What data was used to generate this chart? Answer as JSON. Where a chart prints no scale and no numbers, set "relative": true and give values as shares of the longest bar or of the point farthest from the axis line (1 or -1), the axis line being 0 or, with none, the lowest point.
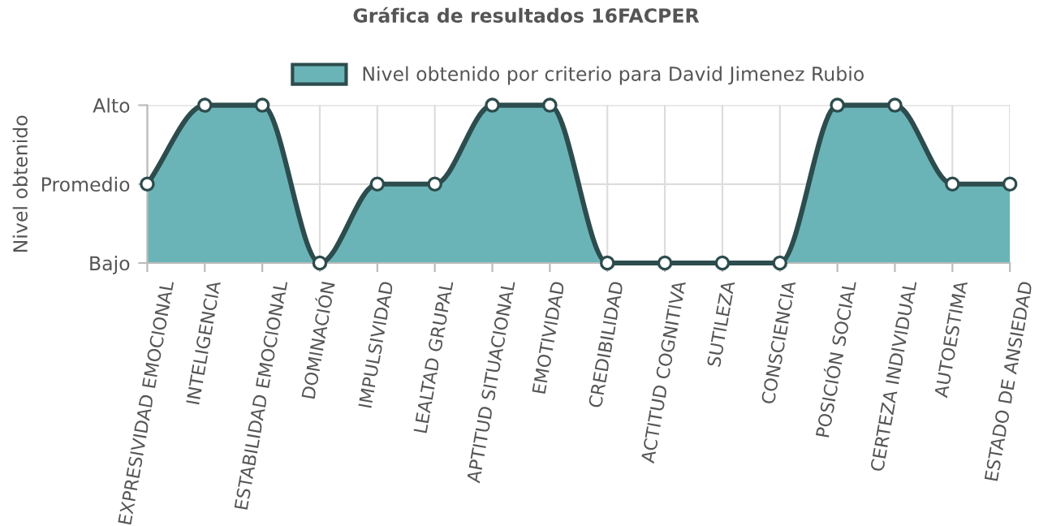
{
  "chart_data": {
    "type": "area",
    "title": "Gráfica de resultados 16FACPER",
    "ylabel": "Nivel obtenido",
    "categories": [
      "EXPRESIVIDAD EMOCIONAL",
      "INTELIGENCIA",
      "ESTABILIDAD EMOCIONAL",
      "DOMINACIÓN",
      "IMPULSIVIDAD",
      "LEALTAD GRUPAL",
      "APTITUD SITUACIONAL",
      "EMOTIVIDAD",
      "CREDIBILIDAD",
      "ACTITUD COGNITIVA",
      "SUTILEZA",
      "CONSCIENCIA",
      "POSICIÓN SOCIAL",
      "CERTEZA INDIVIDUAL",
      "AUTOESTIMA",
      "ESTADO DE ANSIEDAD"
    ],
    "series": [
      {
        "name": "Nivel obtenido por criterio para David Jimenez Rubio",
        "color": "#6ab4b7",
        "values": [
          0.5,
          1,
          1,
          0,
          0.5,
          0.5,
          1,
          1,
          0,
          0,
          0,
          0,
          1,
          1,
          0.5,
          0.5
        ]
      }
    ],
    "relative": true,
    "y_categories": [
      "Alto",
      "Promedio",
      "Bajo"
    ],
    "grid": true,
    "legend": "top",
    "marker": "circle",
    "line_style": "solid"
  }
}
